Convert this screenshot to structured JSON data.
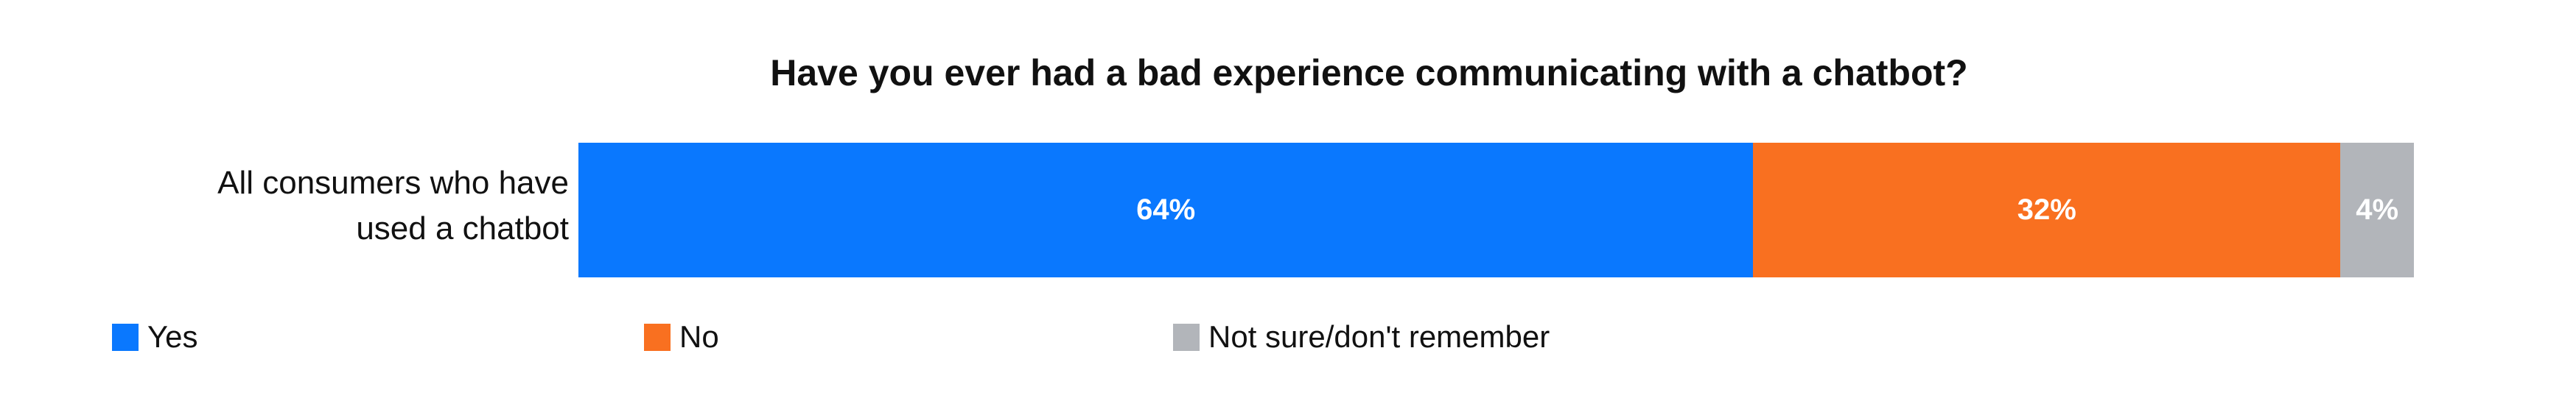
{
  "chart_data": {
    "type": "bar",
    "orientation": "horizontal",
    "stacked": true,
    "title": "Have you ever had a bad experience communicating with a chatbot?",
    "categories": [
      "All consumers who have used a chatbot"
    ],
    "category_lines": [
      "All consumers who have",
      "used a chatbot"
    ],
    "series": [
      {
        "name": "Yes",
        "values": [
          64
        ],
        "label": "64%",
        "color": "#0a78fe"
      },
      {
        "name": "No",
        "values": [
          32
        ],
        "label": "32%",
        "color": "#f97020"
      },
      {
        "name": "Not sure/don't remember",
        "values": [
          4
        ],
        "label": "4%",
        "color": "#b2b5ba"
      }
    ],
    "xlim": [
      0,
      100
    ],
    "unit": "%",
    "grid": false,
    "legend_position": "bottom-left"
  }
}
